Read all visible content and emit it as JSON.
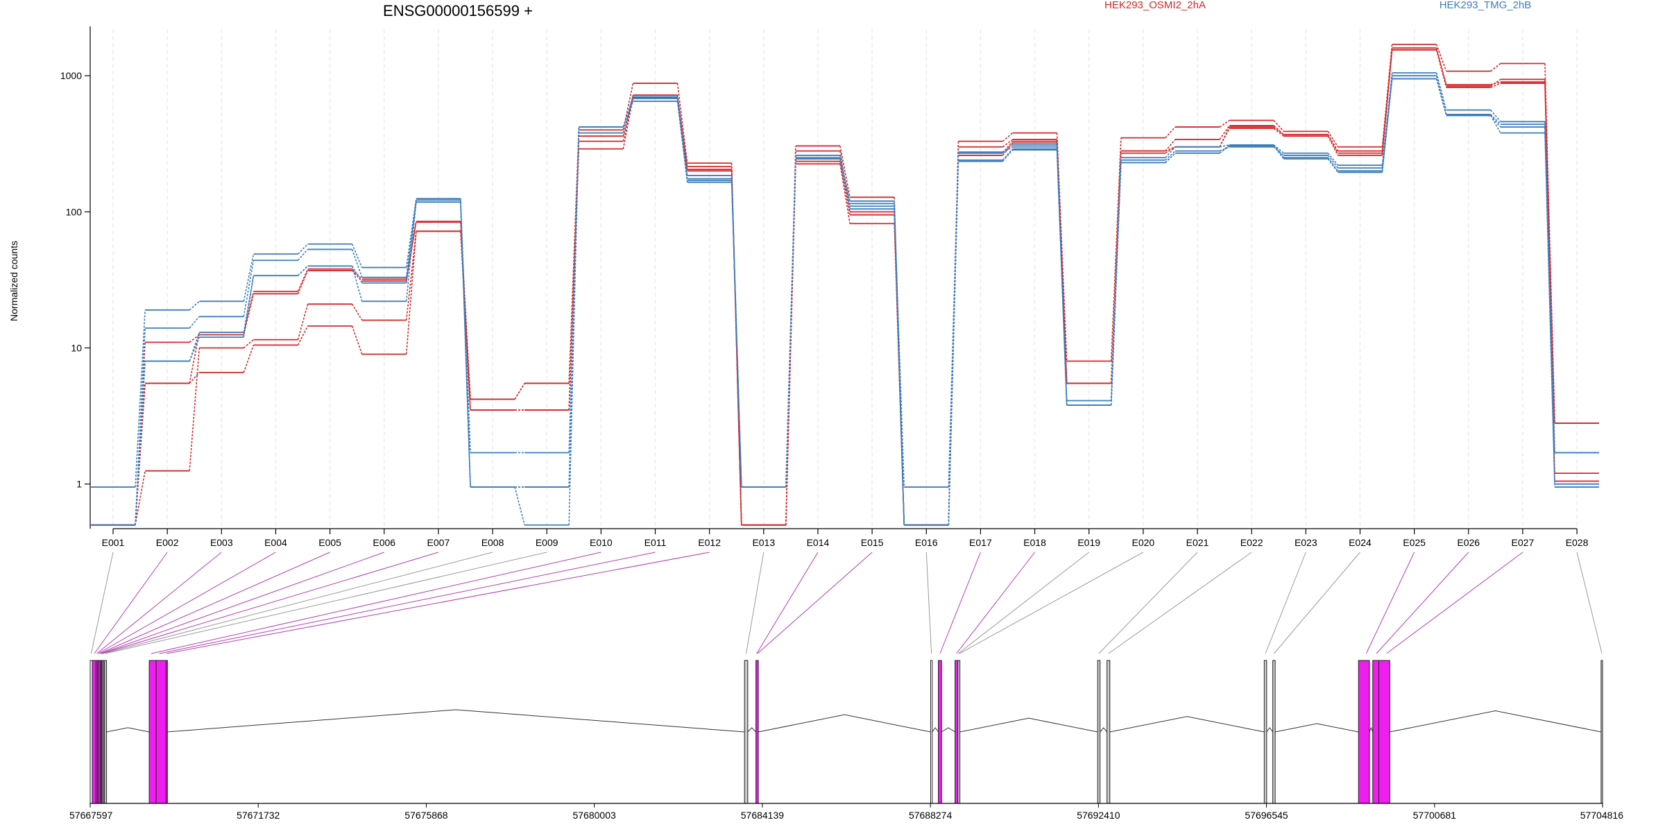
{
  "chart_data": {
    "type": "line",
    "title": "ENSG00000156599 +",
    "ylabel": "Normalized counts",
    "xlabel": "",
    "y_scale": "log",
    "ylim": [
      0.47,
      2200
    ],
    "grid": "vertical per exon (light)",
    "legend": [
      {
        "name": "HEK293_OSMI2_2hA",
        "color": "#d62728"
      },
      {
        "name": "HEK293_TMG_2hB",
        "color": "#3b7ebd"
      }
    ],
    "y_ticks": [
      "1",
      "10",
      "100",
      "1000"
    ],
    "categories": [
      "E001",
      "E002",
      "E003",
      "E004",
      "E005",
      "E006",
      "E007",
      "E008",
      "E009",
      "E010",
      "E011",
      "E012",
      "E013",
      "E014",
      "E015",
      "E016",
      "E017",
      "E018",
      "E019",
      "E020",
      "E021",
      "E022",
      "E023",
      "E024",
      "E025",
      "E026",
      "E027",
      "E028"
    ],
    "series": [
      {
        "group": "HEK293_OSMI2_2hA",
        "color": "#d62728",
        "values": [
          0.5,
          5.5,
          13,
          26,
          38,
          32,
          85,
          4.2,
          5.5,
          400,
          880,
          228,
          0.5,
          305,
          128,
          0.5,
          330,
          380,
          8,
          350,
          420,
          470,
          390,
          300,
          1700,
          1080,
          1230,
          2.8
        ]
      },
      {
        "group": "HEK293_OSMI2_2hA",
        "color": "#d62728",
        "values": [
          0.5,
          11,
          12.5,
          25,
          37,
          31,
          84,
          3.5,
          3.5,
          330,
          720,
          200,
          0.5,
          280,
          100,
          0.5,
          300,
          340,
          5.5,
          280,
          340,
          430,
          370,
          280,
          1600,
          860,
          900,
          1.2
        ]
      },
      {
        "group": "HEK293_OSMI2_2hA",
        "color": "#d62728",
        "values": [
          0.5,
          1.25,
          10,
          11.5,
          21,
          16,
          72,
          3.5,
          3.5,
          290,
          690,
          205,
          0.5,
          235,
          95,
          0.5,
          260,
          320,
          5.5,
          280,
          300,
          410,
          360,
          260,
          1550,
          840,
          940,
          1.05
        ]
      },
      {
        "group": "HEK293_OSMI2_2hA",
        "color": "#d62728",
        "values": [
          0.5,
          5.5,
          6.6,
          10.5,
          14.5,
          9,
          72,
          4.2,
          5.5,
          360,
          720,
          215,
          0.5,
          225,
          82,
          0.5,
          270,
          330,
          5.5,
          270,
          300,
          420,
          370,
          270,
          1550,
          820,
          880,
          2.8
        ]
      },
      {
        "group": "HEK293_TMG_2hB",
        "color": "#3b7ebd",
        "values": [
          0.95,
          19,
          22,
          49,
          58,
          39,
          125,
          1.7,
          1.7,
          420,
          700,
          185,
          0.95,
          260,
          110,
          0.95,
          275,
          310,
          4.1,
          250,
          300,
          310,
          270,
          220,
          1050,
          560,
          460,
          1.7
        ]
      },
      {
        "group": "HEK293_TMG_2hB",
        "color": "#3b7ebd",
        "values": [
          0.5,
          14,
          17,
          44,
          53,
          33,
          122,
          0.95,
          0.95,
          380,
          680,
          175,
          0.95,
          250,
          120,
          0.5,
          270,
          300,
          3.8,
          240,
          280,
          300,
          260,
          210,
          1000,
          520,
          440,
          1.7
        ]
      },
      {
        "group": "HEK293_TMG_2hB",
        "color": "#3b7ebd",
        "values": [
          0.5,
          8,
          13,
          34,
          40,
          30,
          118,
          0.95,
          0.5,
          420,
          650,
          170,
          0.95,
          245,
          115,
          0.5,
          240,
          290,
          3.8,
          230,
          270,
          310,
          250,
          200,
          950,
          510,
          420,
          1.0
        ]
      },
      {
        "group": "HEK293_TMG_2hB",
        "color": "#3b7ebd",
        "values": [
          0.5,
          8,
          12,
          34,
          40,
          22,
          118,
          0.95,
          0.95,
          420,
          650,
          165,
          0.95,
          245,
          105,
          0.5,
          235,
          285,
          3.8,
          230,
          270,
          305,
          245,
          195,
          950,
          510,
          380,
          0.95
        ]
      }
    ],
    "genomic_axis": {
      "tick_labels": [
        "57667597",
        "57671732",
        "57675868",
        "57680003",
        "57684139",
        "57688274",
        "57692410",
        "57696545",
        "57700681",
        "57704816"
      ]
    },
    "gene_model": {
      "exons": [
        {
          "start": 57667597,
          "end": 57667650,
          "color": "#ffffff"
        },
        {
          "start": 57667650,
          "end": 57667740,
          "color": "#ee1fee"
        },
        {
          "start": 57667740,
          "end": 57667775,
          "color": "#ee1fee"
        },
        {
          "start": 57667775,
          "end": 57667810,
          "color": "#ee1fee"
        },
        {
          "start": 57667810,
          "end": 57667850,
          "color": "#ee1fee"
        },
        {
          "start": 57667850,
          "end": 57667875,
          "color": "#ee1fee"
        },
        {
          "start": 57667875,
          "end": 57667895,
          "color": "#ee1fee"
        },
        {
          "start": 57667895,
          "end": 57667930,
          "color": "#cccccc"
        },
        {
          "start": 57667950,
          "end": 57668000,
          "color": "#cccccc"
        },
        {
          "start": 57669050,
          "end": 57669220,
          "color": "#ee1fee"
        },
        {
          "start": 57669220,
          "end": 57669465,
          "color": "#ee1fee"
        },
        {
          "start": 57669465,
          "end": 57669485,
          "color": "#ee1fee"
        },
        {
          "start": 57683700,
          "end": 57683780,
          "color": "#cccccc"
        },
        {
          "start": 57683980,
          "end": 57684040,
          "color": "#ee1fee"
        },
        {
          "start": 57688280,
          "end": 57688320,
          "color": "#ffffff"
        },
        {
          "start": 57688470,
          "end": 57688550,
          "color": "#ee1fee"
        },
        {
          "start": 57688880,
          "end": 57688950,
          "color": "#ee1fee"
        },
        {
          "start": 57688950,
          "end": 57689000,
          "color": "#cccccc"
        },
        {
          "start": 57692390,
          "end": 57692450,
          "color": "#cccccc"
        },
        {
          "start": 57692620,
          "end": 57692690,
          "color": "#cccccc"
        },
        {
          "start": 57696490,
          "end": 57696550,
          "color": "#cccccc"
        },
        {
          "start": 57696700,
          "end": 57696760,
          "color": "#cccccc"
        },
        {
          "start": 57698810,
          "end": 57699080,
          "color": "#ee1fee"
        },
        {
          "start": 57699160,
          "end": 57699310,
          "color": "#ee1fee"
        },
        {
          "start": 57699310,
          "end": 57699580,
          "color": "#ee1fee"
        },
        {
          "start": 57704780,
          "end": 57704816,
          "color": "#cccccc"
        }
      ],
      "exon_links": [
        {
          "target": 57667620,
          "color": "#999999"
        },
        {
          "target": 57667700,
          "color": "#b33db3"
        },
        {
          "target": 57667760,
          "color": "#b33db3"
        },
        {
          "target": 57667790,
          "color": "#b33db3"
        },
        {
          "target": 57667830,
          "color": "#b33db3"
        },
        {
          "target": 57667862,
          "color": "#b33db3"
        },
        {
          "target": 57667885,
          "color": "#b33db3"
        },
        {
          "target": 57667912,
          "color": "#999999"
        },
        {
          "target": 57667975,
          "color": "#999999"
        },
        {
          "target": 57669100,
          "color": "#b33db3"
        },
        {
          "target": 57669300,
          "color": "#b33db3"
        },
        {
          "target": 57669475,
          "color": "#b33db3"
        },
        {
          "target": 57683740,
          "color": "#999999"
        },
        {
          "target": 57684000,
          "color": "#b33db3"
        },
        {
          "target": 57684020,
          "color": "#b33db3"
        },
        {
          "target": 57688300,
          "color": "#999999"
        },
        {
          "target": 57688510,
          "color": "#b33db3"
        },
        {
          "target": 57688915,
          "color": "#b33db3"
        },
        {
          "target": 57688960,
          "color": "#999999"
        },
        {
          "target": 57688990,
          "color": "#999999"
        },
        {
          "target": 57692420,
          "color": "#999999"
        },
        {
          "target": 57692655,
          "color": "#999999"
        },
        {
          "target": 57696520,
          "color": "#999999"
        },
        {
          "target": 57696730,
          "color": "#999999"
        },
        {
          "target": 57699000,
          "color": "#b33db3"
        },
        {
          "target": 57699250,
          "color": "#b33db3"
        },
        {
          "target": 57699500,
          "color": "#b33db3"
        },
        {
          "target": 57704800,
          "color": "#999999"
        }
      ]
    }
  }
}
